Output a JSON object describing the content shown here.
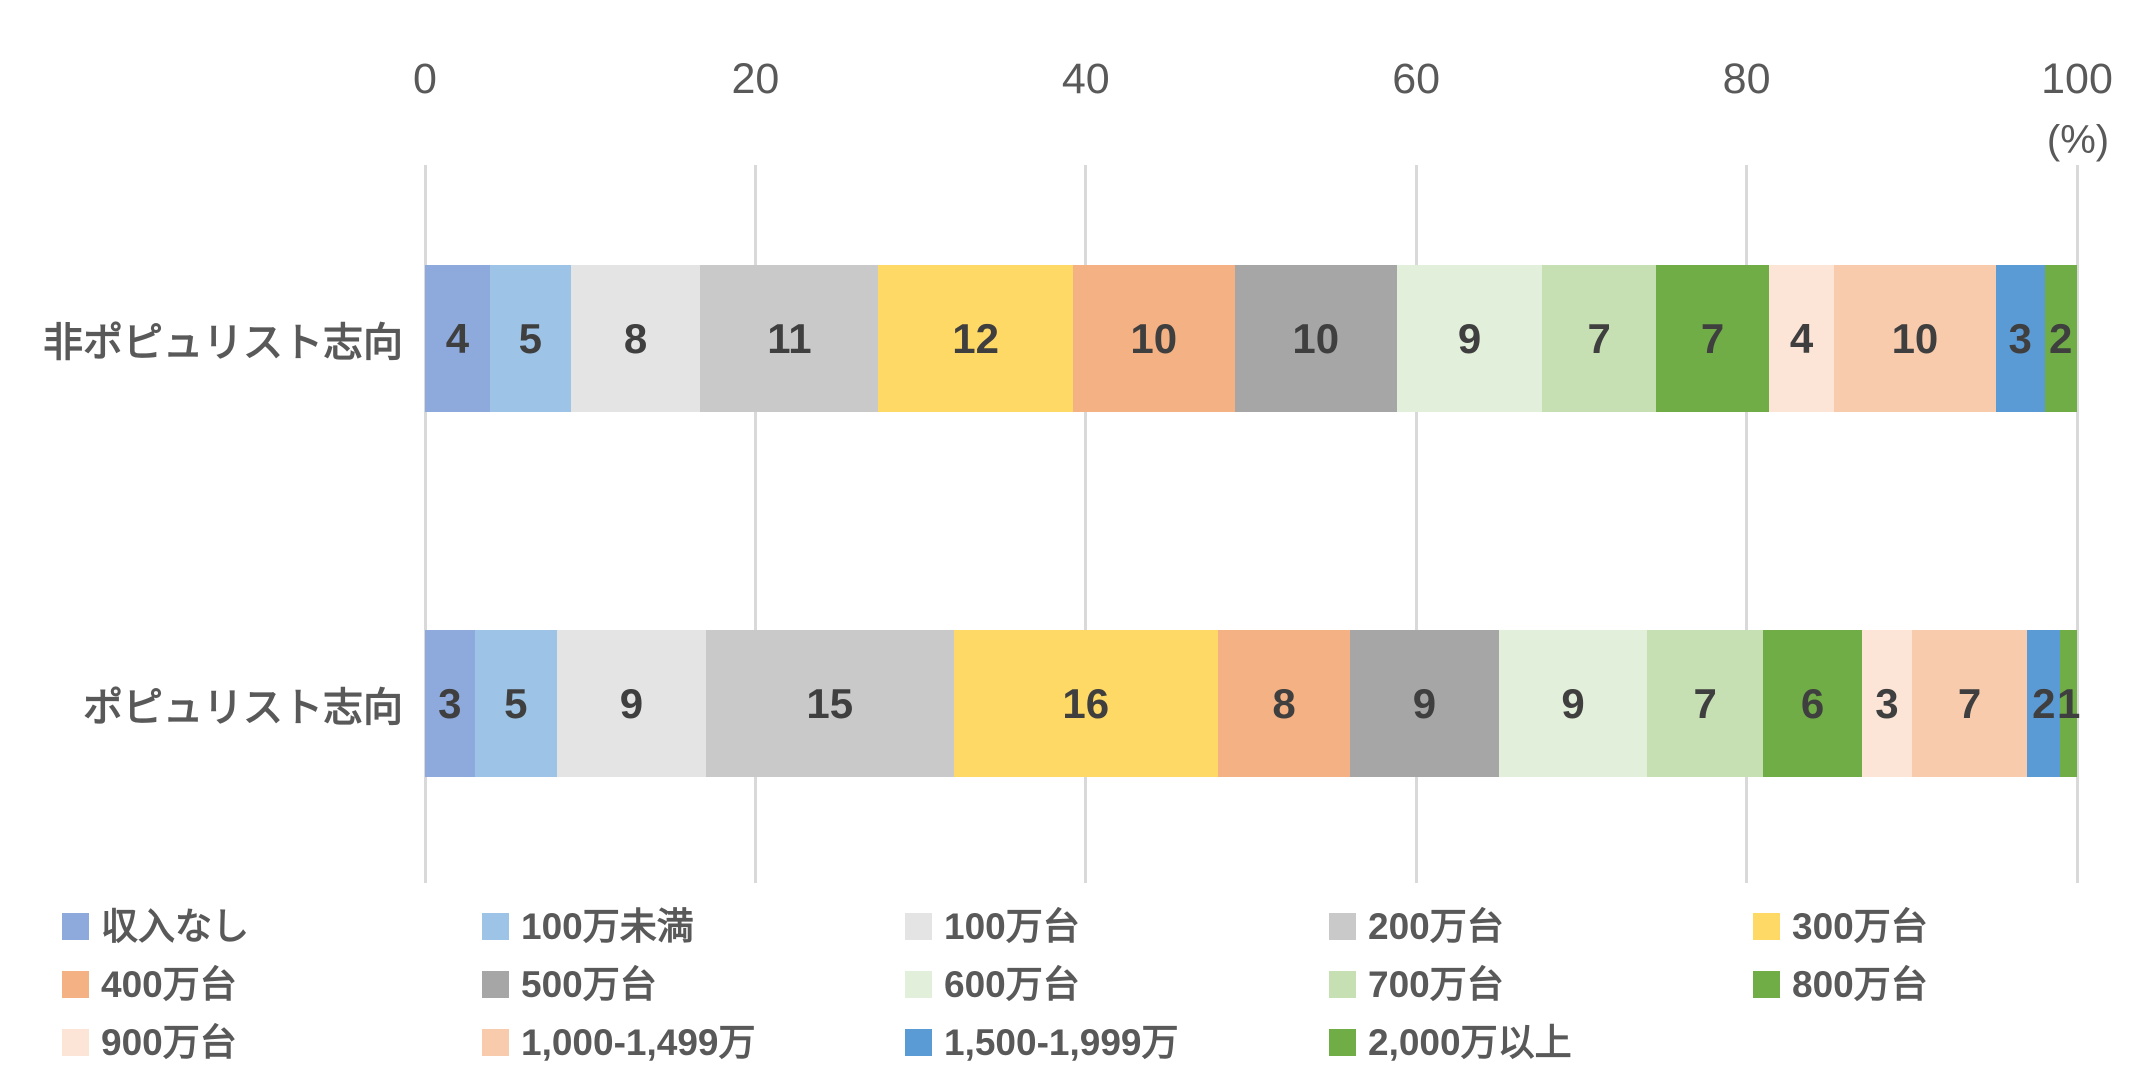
{
  "chart_data": {
    "type": "bar",
    "orientation": "horizontal-stacked",
    "title": "",
    "xlabel": "",
    "ylabel": "",
    "unit_label": "(%)",
    "xlim": [
      0,
      100
    ],
    "x_ticks": [
      0,
      20,
      40,
      60,
      80,
      100
    ],
    "grid": true,
    "legend_position": "bottom",
    "categories": [
      "非ポピュリスト志向",
      "ポピュリスト志向"
    ],
    "series": [
      {
        "name": "収入なし",
        "color": "#8EA9DB",
        "values": [
          4,
          3
        ]
      },
      {
        "name": "100万未満",
        "color": "#9DC3E6",
        "values": [
          5,
          5
        ]
      },
      {
        "name": "100万台",
        "color": "#E5E4E4",
        "values": [
          8,
          9
        ]
      },
      {
        "name": "200万台",
        "color": "#C9C9C9",
        "values": [
          11,
          15
        ]
      },
      {
        "name": "300万台",
        "color": "#FFD966",
        "values": [
          12,
          16
        ]
      },
      {
        "name": "400万台",
        "color": "#F4B183",
        "values": [
          10,
          8
        ]
      },
      {
        "name": "500万台",
        "color": "#A6A6A6",
        "values": [
          10,
          9
        ]
      },
      {
        "name": "600万台",
        "color": "#E2EFDA",
        "values": [
          9,
          9
        ]
      },
      {
        "name": "700万台",
        "color": "#C6E0B4",
        "values": [
          7,
          7
        ]
      },
      {
        "name": "800万台",
        "color": "#70AD47",
        "values": [
          7,
          6
        ]
      },
      {
        "name": "900万台",
        "color": "#FCE4D6",
        "values": [
          4,
          3
        ]
      },
      {
        "name": "1,000-1,499万",
        "color": "#F8CBAD",
        "values": [
          10,
          7
        ]
      },
      {
        "name": "1,500-1,999万",
        "color": "#5B9BD5",
        "values": [
          3,
          2
        ]
      },
      {
        "name": "2,000万以上",
        "color": "#70AD47",
        "values": [
          2,
          1
        ]
      }
    ],
    "colors": {
      "gridline": "#d9d9d9",
      "axis_text": "#595959",
      "data_label": "#3f3f3f"
    }
  }
}
